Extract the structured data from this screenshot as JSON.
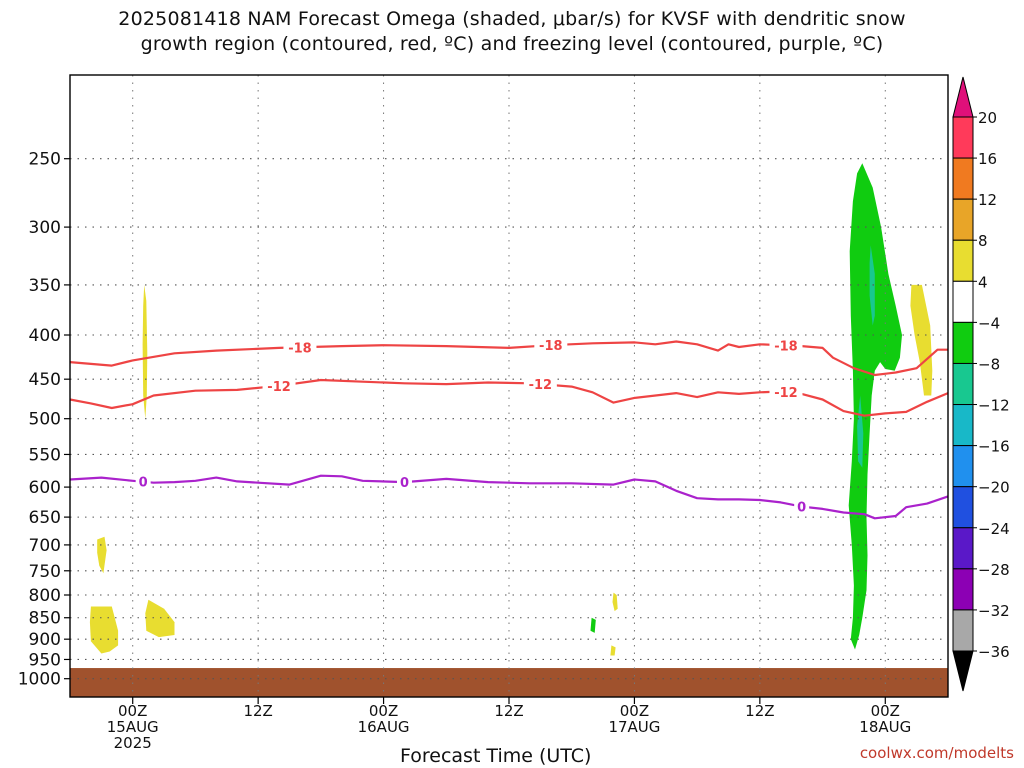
{
  "chart_data": {
    "type": "heatmap",
    "title_line1": "2025081418 NAM Forecast Omega (shaded, μbar/s) for KVSF with dendritic snow",
    "title_line2": "growth region (contoured, red, ºC) and freezing level (contoured, purple, ºC)",
    "xlabel": "Forecast Time (UTC)",
    "credit": "coolwx.com/modelts",
    "x_ticks": [
      {
        "hours": 6,
        "lines": [
          "00Z",
          "15AUG",
          "2025"
        ]
      },
      {
        "hours": 18,
        "lines": [
          "12Z"
        ]
      },
      {
        "hours": 30,
        "lines": [
          "00Z",
          "16AUG"
        ]
      },
      {
        "hours": 42,
        "lines": [
          "12Z"
        ]
      },
      {
        "hours": 54,
        "lines": [
          "00Z",
          "17AUG"
        ]
      },
      {
        "hours": 66,
        "lines": [
          "12Z"
        ]
      },
      {
        "hours": 78,
        "lines": [
          "00Z",
          "18AUG"
        ]
      }
    ],
    "xlim": [
      0,
      84
    ],
    "y_ticks": [
      250,
      300,
      350,
      400,
      450,
      500,
      550,
      600,
      650,
      700,
      750,
      800,
      850,
      900,
      950,
      1000
    ],
    "ylim": [
      1050,
      200
    ],
    "y_scale": "log-pressure",
    "grid": true,
    "colorbar": {
      "labels": [
        "20",
        "16",
        "12",
        "8",
        "4",
        "−4",
        "−8",
        "−12",
        "−16",
        "−20",
        "−24",
        "−28",
        "−32",
        "−36"
      ],
      "colors": [
        "#ff3a5a",
        "#f07a20",
        "#e8a528",
        "#e8dd30",
        "#ffffff",
        "#10cc10",
        "#18c890",
        "#18b8c8",
        "#2090ee",
        "#2050e0",
        "#5a18c8",
        "#8c00b4",
        "#a8a8a8"
      ],
      "top_arrow_color": "#e0107a",
      "bottom_arrow_color": "#000000"
    },
    "ground_color": "#a0522d",
    "ground_top_hpa": 972,
    "contours": [
      {
        "value": -18,
        "label": "-18",
        "color": "#ee4444",
        "label_hours": [
          22,
          46,
          68.5
        ],
        "points": [
          [
            0,
            430
          ],
          [
            2,
            432
          ],
          [
            4,
            434
          ],
          [
            6,
            428
          ],
          [
            10,
            420
          ],
          [
            14,
            417
          ],
          [
            20,
            414
          ],
          [
            26,
            412
          ],
          [
            30,
            411
          ],
          [
            36,
            412
          ],
          [
            42,
            414
          ],
          [
            46,
            411
          ],
          [
            50,
            409
          ],
          [
            54,
            408
          ],
          [
            56,
            410
          ],
          [
            58,
            407
          ],
          [
            60,
            410
          ],
          [
            62,
            417
          ],
          [
            63,
            410
          ],
          [
            64,
            413
          ],
          [
            66,
            410
          ],
          [
            68,
            411
          ],
          [
            70,
            412
          ],
          [
            72,
            414
          ],
          [
            73,
            425
          ],
          [
            75,
            437
          ],
          [
            77,
            445
          ],
          [
            79,
            442
          ],
          [
            81,
            437
          ],
          [
            83,
            416
          ],
          [
            84,
            416
          ]
        ]
      },
      {
        "value": -12,
        "label": "-12",
        "color": "#ee4444",
        "label_hours": [
          20,
          45,
          68.5
        ],
        "points": [
          [
            0,
            475
          ],
          [
            2,
            480
          ],
          [
            4,
            486
          ],
          [
            6,
            481
          ],
          [
            8,
            470
          ],
          [
            12,
            464
          ],
          [
            16,
            463
          ],
          [
            20,
            458
          ],
          [
            24,
            451
          ],
          [
            28,
            453
          ],
          [
            32,
            455
          ],
          [
            36,
            456
          ],
          [
            40,
            454
          ],
          [
            44,
            455
          ],
          [
            48,
            459
          ],
          [
            50,
            466
          ],
          [
            52,
            479
          ],
          [
            54,
            473
          ],
          [
            58,
            467
          ],
          [
            60,
            472
          ],
          [
            62,
            466
          ],
          [
            64,
            468
          ],
          [
            66,
            466
          ],
          [
            68,
            465
          ],
          [
            70,
            468
          ],
          [
            72,
            475
          ],
          [
            74,
            490
          ],
          [
            76,
            496
          ],
          [
            78,
            493
          ],
          [
            80,
            491
          ],
          [
            82,
            478
          ],
          [
            84,
            467
          ]
        ]
      },
      {
        "value": 0,
        "label": "0",
        "color": "#aa22cc",
        "label_hours": [
          7,
          32,
          70
        ],
        "points": [
          [
            0,
            588
          ],
          [
            3,
            585
          ],
          [
            6,
            590
          ],
          [
            8,
            593
          ],
          [
            10,
            592
          ],
          [
            12,
            590
          ],
          [
            14,
            585
          ],
          [
            16,
            591
          ],
          [
            18,
            593
          ],
          [
            21,
            596
          ],
          [
            24,
            582
          ],
          [
            26,
            583
          ],
          [
            28,
            590
          ],
          [
            32,
            592
          ],
          [
            36,
            587
          ],
          [
            40,
            592
          ],
          [
            44,
            594
          ],
          [
            48,
            594
          ],
          [
            52,
            596
          ],
          [
            54,
            588
          ],
          [
            56,
            591
          ],
          [
            58,
            606
          ],
          [
            60,
            618
          ],
          [
            62,
            620
          ],
          [
            64,
            620
          ],
          [
            66,
            621
          ],
          [
            68,
            625
          ],
          [
            70,
            632
          ],
          [
            72,
            636
          ],
          [
            74,
            642
          ],
          [
            76,
            645
          ],
          [
            77,
            652
          ],
          [
            79,
            648
          ],
          [
            80,
            633
          ],
          [
            82,
            627
          ],
          [
            84,
            615
          ]
        ]
      }
    ],
    "omega_regions": [
      {
        "value_range": [
          4,
          8
        ],
        "color": "#e8dd30",
        "points": [
          [
            7.1,
            350
          ],
          [
            7.3,
            365
          ],
          [
            7.4,
            420
          ],
          [
            7.35,
            470
          ],
          [
            7.2,
            500
          ],
          [
            7.0,
            470
          ],
          [
            6.95,
            410
          ],
          [
            7.0,
            370
          ]
        ]
      },
      {
        "value_range": [
          4,
          8
        ],
        "color": "#e8dd30",
        "points": [
          [
            2.6,
            690
          ],
          [
            3.3,
            685
          ],
          [
            3.5,
            710
          ],
          [
            3.2,
            755
          ],
          [
            2.8,
            740
          ],
          [
            2.6,
            715
          ]
        ]
      },
      {
        "value_range": [
          4,
          8
        ],
        "color": "#e8dd30",
        "points": [
          [
            2.0,
            825
          ],
          [
            4.0,
            825
          ],
          [
            4.6,
            880
          ],
          [
            4.6,
            915
          ],
          [
            3.8,
            930
          ],
          [
            3.0,
            935
          ],
          [
            2.0,
            905
          ],
          [
            1.9,
            860
          ]
        ]
      },
      {
        "value_range": [
          4,
          8
        ],
        "color": "#e8dd30",
        "points": [
          [
            7.5,
            810
          ],
          [
            9.0,
            830
          ],
          [
            10.0,
            860
          ],
          [
            10.0,
            890
          ],
          [
            8.5,
            895
          ],
          [
            7.3,
            880
          ],
          [
            7.2,
            840
          ]
        ]
      },
      {
        "value_range": [
          4,
          8
        ],
        "color": "#e8dd30",
        "points": [
          [
            52.0,
            795
          ],
          [
            52.3,
            800
          ],
          [
            52.4,
            830
          ],
          [
            52.1,
            835
          ],
          [
            51.9,
            815
          ]
        ]
      },
      {
        "value_range": [
          4,
          8
        ],
        "color": "#e8dd30",
        "points": [
          [
            51.8,
            915
          ],
          [
            52.2,
            920
          ],
          [
            52.1,
            940
          ],
          [
            51.7,
            940
          ]
        ]
      },
      {
        "value_range": [
          -8,
          -4
        ],
        "color": "#10cc10",
        "points": [
          [
            49.9,
            850
          ],
          [
            50.3,
            855
          ],
          [
            50.2,
            885
          ],
          [
            49.8,
            880
          ]
        ]
      },
      {
        "value_range": [
          4,
          8
        ],
        "color": "#e8dd30",
        "points": [
          [
            80.5,
            350
          ],
          [
            81.5,
            350
          ],
          [
            82.3,
            390
          ],
          [
            82.5,
            440
          ],
          [
            82.4,
            470
          ],
          [
            81.7,
            470
          ],
          [
            81.3,
            430
          ],
          [
            80.8,
            400
          ],
          [
            80.4,
            370
          ]
        ]
      },
      {
        "value_range": [
          -8,
          -4
        ],
        "color": "#10cc10",
        "points": [
          [
            75.8,
            253
          ],
          [
            76.8,
            270
          ],
          [
            77.6,
            300
          ],
          [
            78.3,
            340
          ],
          [
            79.0,
            370
          ],
          [
            79.6,
            400
          ],
          [
            79.4,
            425
          ],
          [
            78.9,
            440
          ],
          [
            78.0,
            438
          ],
          [
            77.5,
            430
          ],
          [
            77.0,
            440
          ],
          [
            76.7,
            470
          ],
          [
            76.5,
            520
          ],
          [
            76.3,
            580
          ],
          [
            76.2,
            650
          ],
          [
            76.3,
            720
          ],
          [
            76.2,
            790
          ],
          [
            75.8,
            850
          ],
          [
            75.5,
            890
          ],
          [
            75.1,
            925
          ],
          [
            74.7,
            900
          ],
          [
            74.9,
            850
          ],
          [
            75.0,
            780
          ],
          [
            74.8,
            700
          ],
          [
            74.5,
            630
          ],
          [
            74.8,
            560
          ],
          [
            75.0,
            500
          ],
          [
            74.9,
            440
          ],
          [
            74.7,
            380
          ],
          [
            74.6,
            320
          ],
          [
            74.9,
            280
          ],
          [
            75.3,
            260
          ]
        ]
      },
      {
        "value_range": [
          -12,
          -8
        ],
        "color": "#18c890",
        "points": [
          [
            76.6,
            315
          ],
          [
            77.0,
            340
          ],
          [
            77.0,
            380
          ],
          [
            76.8,
            390
          ],
          [
            76.5,
            360
          ],
          [
            76.5,
            330
          ]
        ]
      },
      {
        "value_range": [
          -12,
          -8
        ],
        "color": "#18c890",
        "points": [
          [
            75.6,
            470
          ],
          [
            75.9,
            520
          ],
          [
            75.8,
            570
          ],
          [
            75.4,
            560
          ],
          [
            75.3,
            510
          ]
        ]
      }
    ]
  }
}
